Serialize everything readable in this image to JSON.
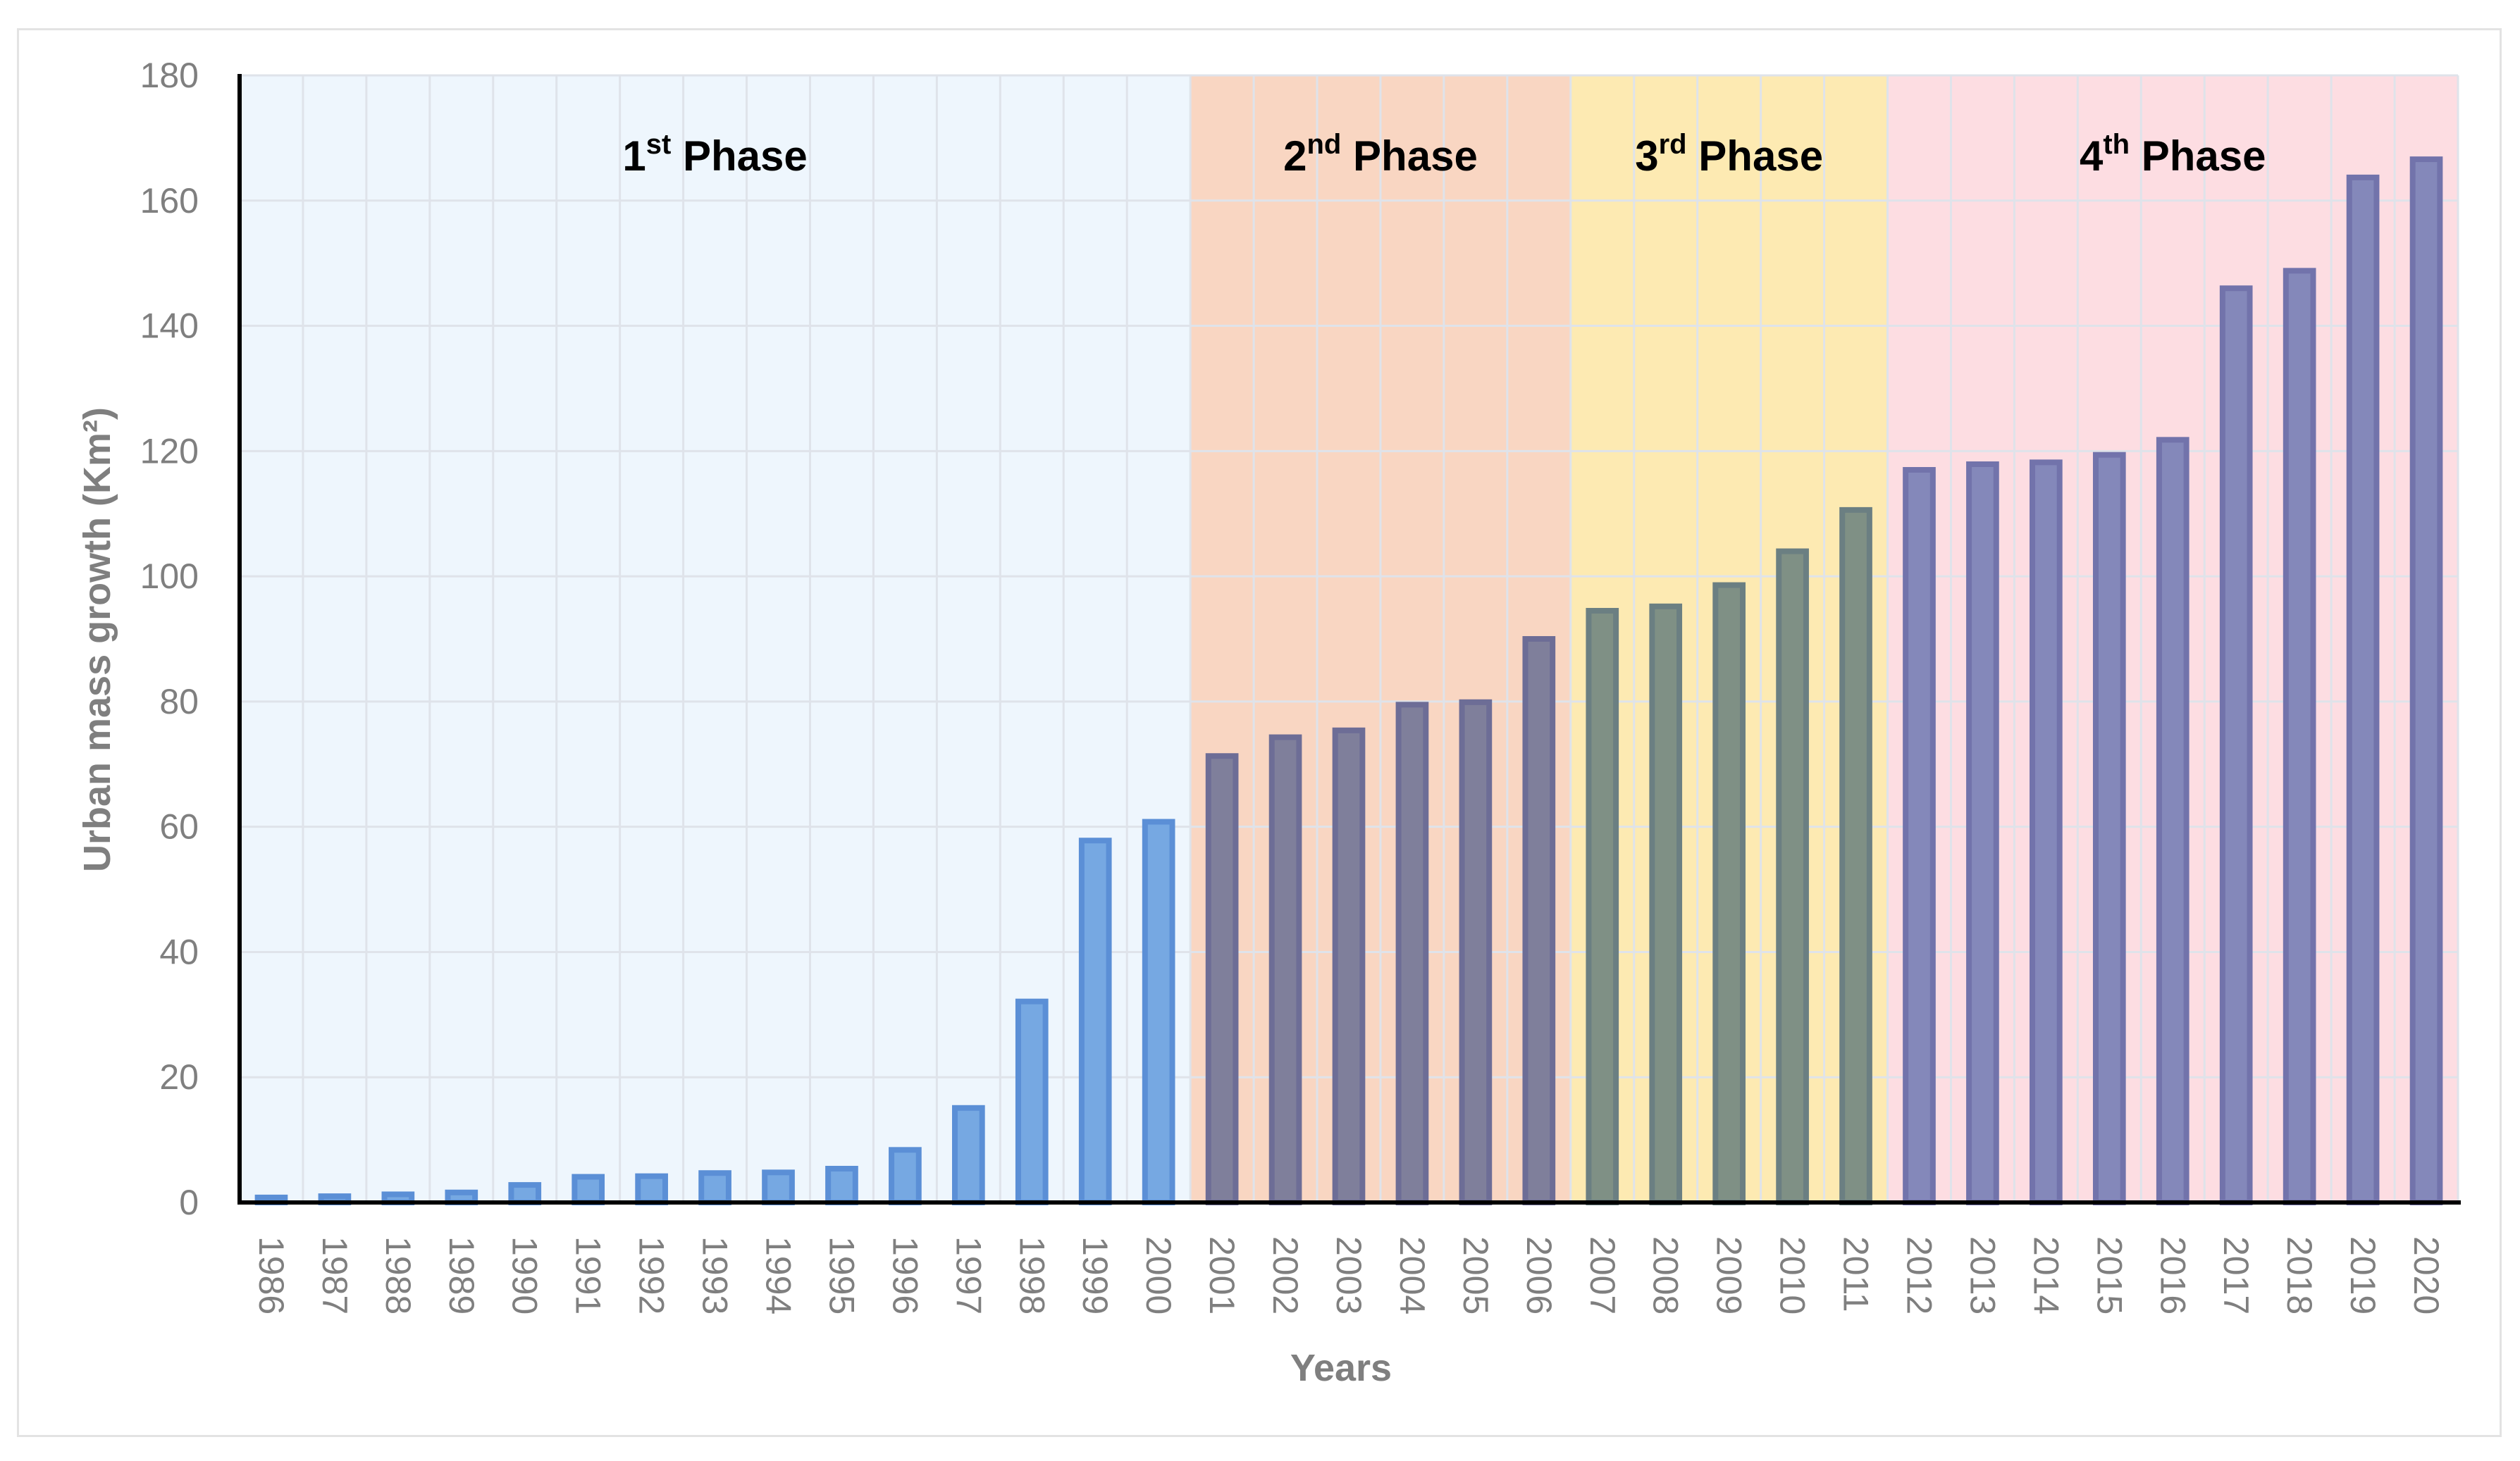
{
  "chart_data": {
    "type": "bar",
    "xlabel": "Years",
    "ylabel": "Urban mass growth (Km²)",
    "ylim": [
      0,
      180
    ],
    "yticks": [
      0,
      20,
      40,
      60,
      80,
      100,
      120,
      140,
      160,
      180
    ],
    "grid": true,
    "categories": [
      "1986",
      "1987",
      "1988",
      "1989",
      "1990",
      "1991",
      "1992",
      "1993",
      "1994",
      "1995",
      "1996",
      "1997",
      "1998",
      "1999",
      "2000",
      "2001",
      "2002",
      "2003",
      "2004",
      "2005",
      "2006",
      "2007",
      "2008",
      "2009",
      "2010",
      "2011",
      "2012",
      "2013",
      "2014",
      "2015",
      "2016",
      "2017",
      "2018",
      "2019",
      "2020"
    ],
    "values": [
      0.8,
      1.0,
      1.3,
      1.6,
      2.8,
      4.1,
      4.2,
      4.7,
      4.8,
      5.4,
      8.4,
      15.1,
      32.1,
      57.8,
      60.8,
      71.3,
      74.3,
      75.4,
      79.5,
      79.9,
      90.0,
      94.5,
      95.2,
      98.6,
      104.0,
      110.6,
      117.0,
      117.9,
      118.2,
      119.4,
      121.8,
      146.0,
      148.8,
      163.7,
      166.6
    ],
    "phases": [
      {
        "name": "1st Phase",
        "num": "1",
        "sup": "st",
        "word": "Phase",
        "start": "1986",
        "end": "2000",
        "bg_color": "#eef6fd",
        "bar_fill": "#76a8e2",
        "bar_stroke": "#5b8fd6"
      },
      {
        "name": "2nd Phase",
        "num": "2",
        "sup": "nd",
        "word": "Phase",
        "start": "2001",
        "end": "2006",
        "bg_color": "#f9d6c2",
        "bar_fill": "#7f7f9b",
        "bar_stroke": "#6d6d96"
      },
      {
        "name": "3rd Phase",
        "num": "3",
        "sup": "rd",
        "word": "Phase",
        "start": "2007",
        "end": "2011",
        "bg_color": "#fdeab2",
        "bar_fill": "#7f9085",
        "bar_stroke": "#6b7f82"
      },
      {
        "name": "4th Phase",
        "num": "4",
        "sup": "th",
        "word": "Phase",
        "start": "2012",
        "end": "2020",
        "bg_color": "#fddde2",
        "bar_fill": "#8488ba",
        "bar_stroke": "#7273ab"
      }
    ]
  }
}
